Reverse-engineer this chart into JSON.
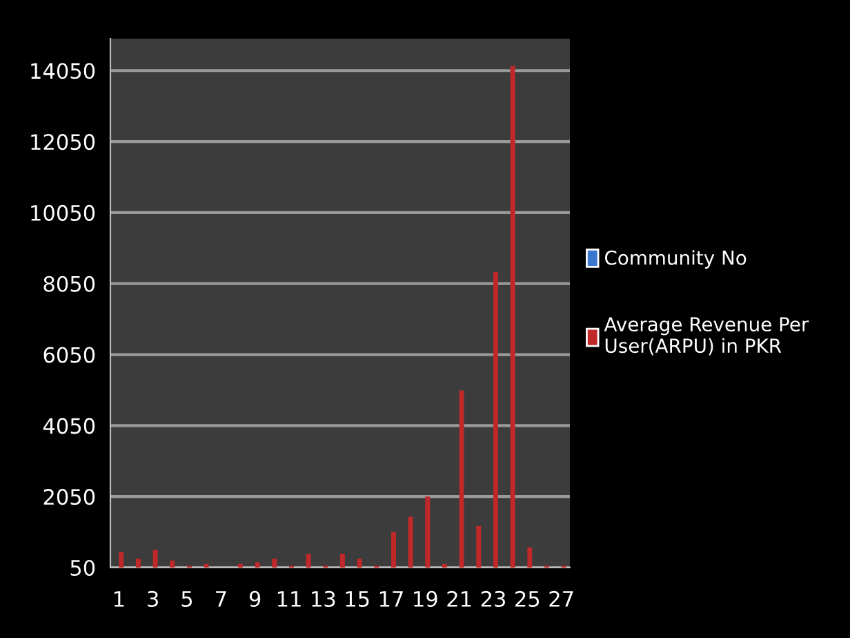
{
  "chart_data": {
    "type": "bar",
    "categories": [
      "1",
      null,
      "3",
      null,
      "5",
      null,
      "7",
      null,
      "9",
      null,
      "11",
      null,
      "13",
      null,
      "15",
      null,
      "17",
      null,
      "19",
      null,
      "21",
      null,
      "23",
      null,
      "25",
      null,
      "27"
    ],
    "series": [
      {
        "name": "Community No",
        "color": "#3a78d0",
        "values": [
          null,
          null,
          null,
          null,
          null,
          null,
          null,
          null,
          null,
          null,
          null,
          null,
          null,
          null,
          null,
          null,
          null,
          null,
          null,
          null,
          null,
          null,
          null,
          null,
          null,
          null,
          null
        ]
      },
      {
        "name": "Average Revenue Per User(ARPU) in PKR",
        "color": "#c0282a",
        "values": [
          490,
          300,
          550,
          250,
          100,
          150,
          null,
          150,
          200,
          300,
          100,
          440,
          100,
          440,
          300,
          100,
          1050,
          1480,
          2050,
          150,
          5040,
          1220,
          8370,
          14180,
          620,
          100,
          100
        ]
      }
    ],
    "ylim": [
      50,
      14950
    ],
    "yticks": [
      50,
      2050,
      4050,
      6050,
      8050,
      10050,
      12050,
      14050
    ],
    "grid": "y",
    "legend": "right"
  }
}
